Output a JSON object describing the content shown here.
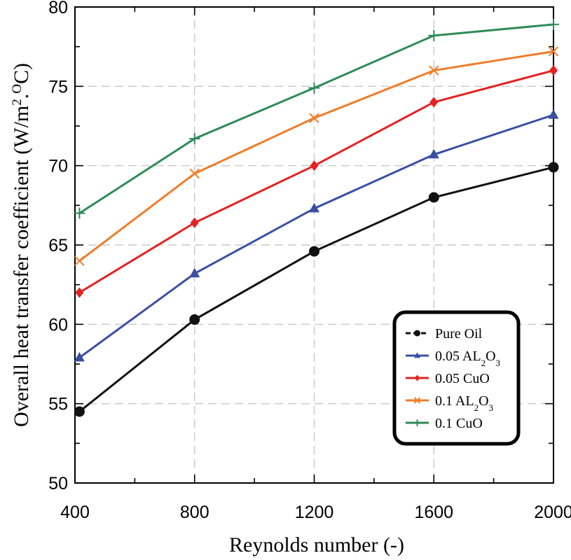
{
  "chart_data": {
    "type": "line",
    "title": "",
    "xlabel": "Reynolds number (-)",
    "ylabel": {
      "prefix": "Overall heat transfer coefficient  (W/m",
      "sup1": "2",
      "mid": ".",
      "sup2": "O",
      "suffix": "C)"
    },
    "xlim": [
      400,
      2000
    ],
    "ylim": [
      50,
      80
    ],
    "x": [
      415,
      800,
      1200,
      1600,
      2000
    ],
    "xticks": [
      400,
      800,
      1200,
      1600,
      2000
    ],
    "xtick_labels": [
      "400",
      "800",
      "1200",
      "1600",
      "2000"
    ],
    "yticks": [
      50,
      55,
      60,
      65,
      70,
      75,
      80
    ],
    "ytick_labels": [
      "50",
      "55",
      "60",
      "65",
      "70",
      "75",
      "80"
    ],
    "grid": true,
    "legend_position": "lower-right",
    "series": [
      {
        "name": "Pure Oil",
        "label": {
          "base": "Pure Oil"
        },
        "color": "#111111",
        "marker": "circle",
        "values": [
          54.5,
          60.3,
          64.6,
          68.0,
          69.9
        ]
      },
      {
        "name": "0.05 AL2O3",
        "label": {
          "base": "0.05 AL",
          "sub1": "2",
          "mid": "O",
          "sub2": "3"
        },
        "color": "#3a4fa3",
        "marker": "triangle",
        "values": [
          57.9,
          63.2,
          67.3,
          70.7,
          73.2
        ]
      },
      {
        "name": "0.05 CuO",
        "label": {
          "base": "0.05 CuO"
        },
        "color": "#e32222",
        "marker": "diamond",
        "values": [
          62.0,
          66.4,
          70.0,
          74.0,
          76.0
        ]
      },
      {
        "name": "0.1 AL2O3",
        "label": {
          "base": "0.1 AL",
          "sub1": "2",
          "mid": "O",
          "sub2": "3"
        },
        "color": "#f07c28",
        "marker": "x",
        "values": [
          64.0,
          69.5,
          73.0,
          76.0,
          77.2
        ]
      },
      {
        "name": "0.1 CuO",
        "label": {
          "base": "0.1 CuO"
        },
        "color": "#2e8b57",
        "marker": "plus",
        "values": [
          67.0,
          71.7,
          74.9,
          78.2,
          78.9
        ]
      }
    ]
  }
}
